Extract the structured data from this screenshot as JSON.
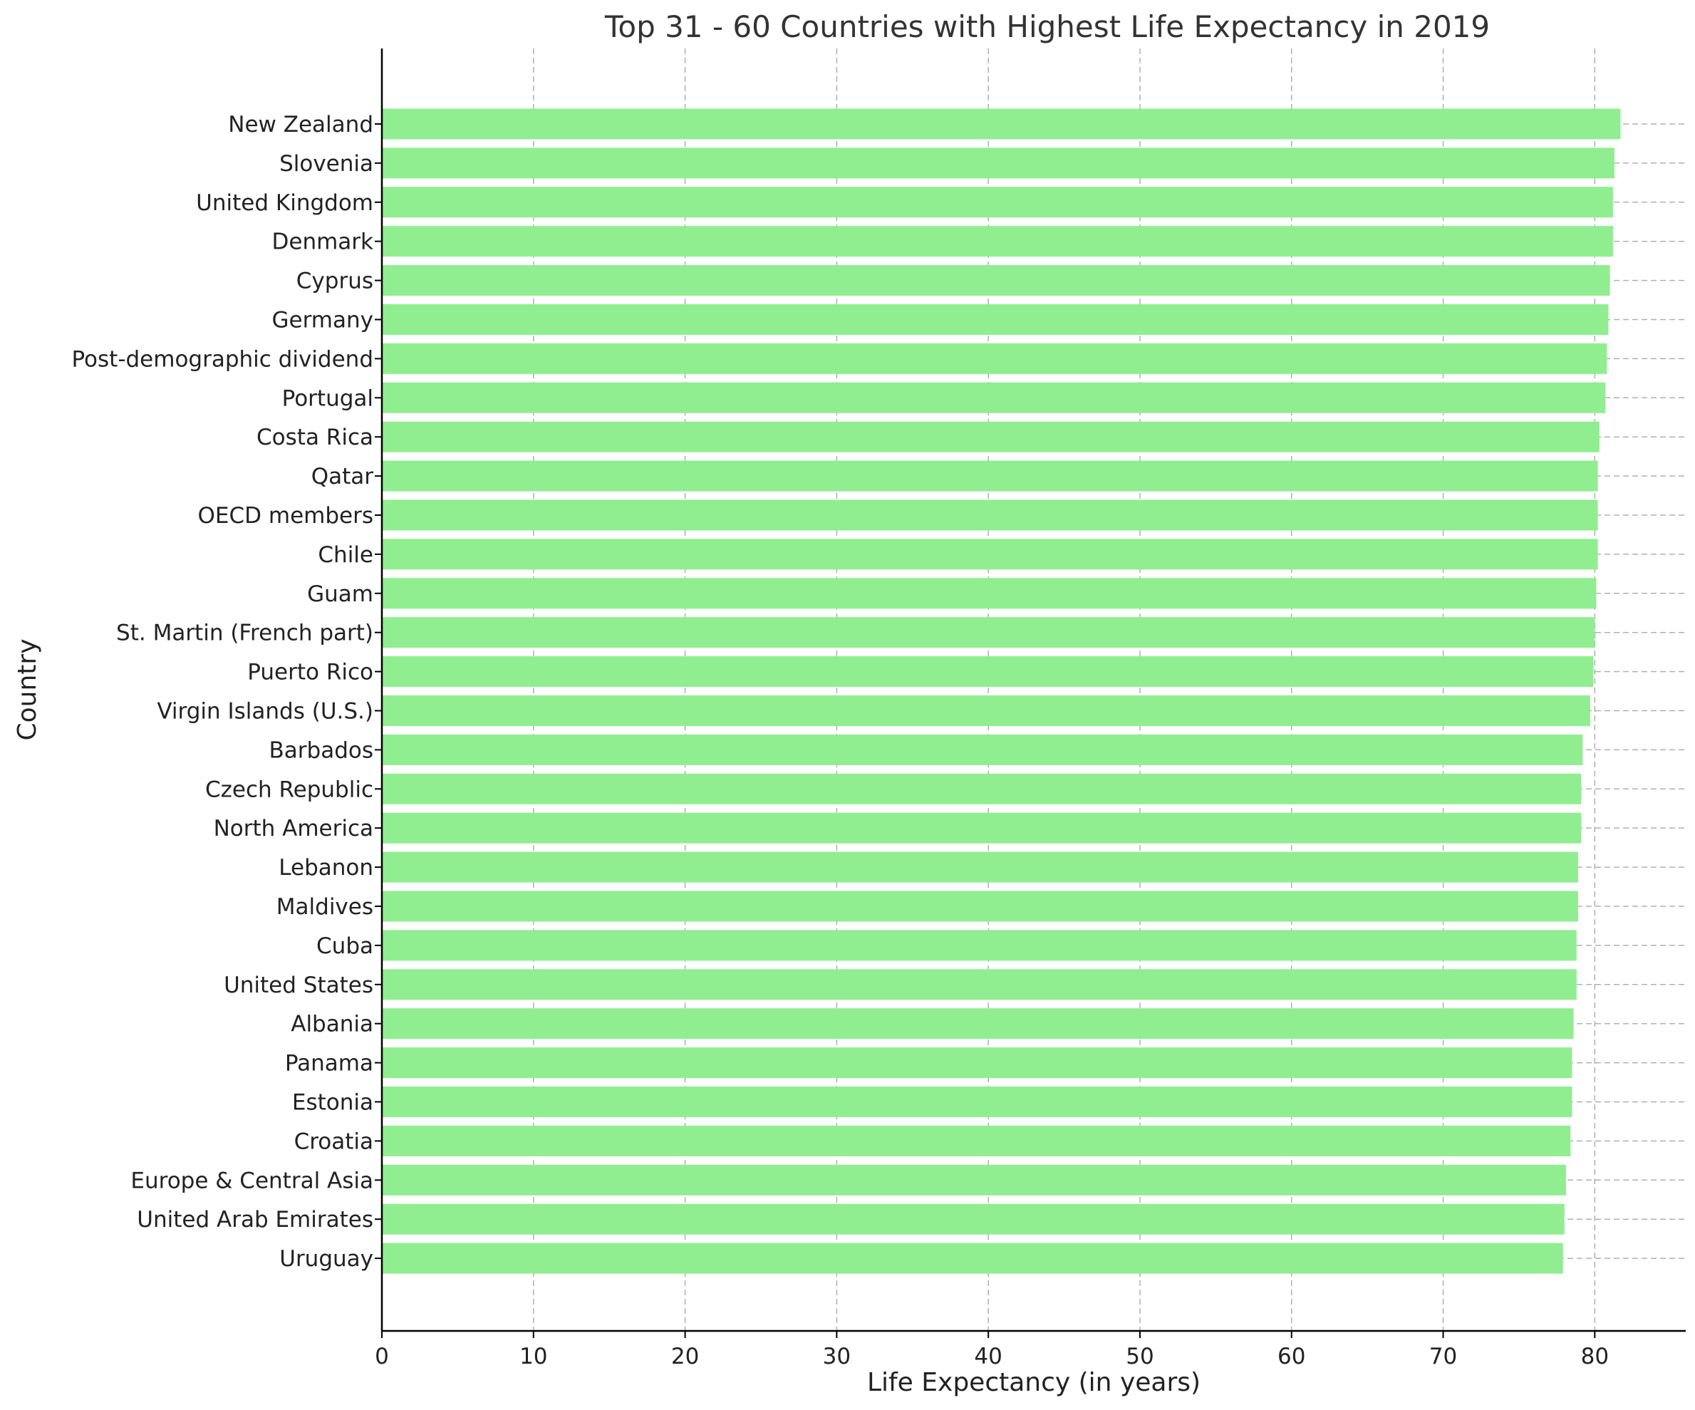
{
  "chart_data": {
    "type": "bar",
    "orientation": "horizontal",
    "title": "Top 31 - 60 Countries with Highest Life Expectancy in 2019",
    "xlabel": "Life Expectancy (in years)",
    "ylabel": "Country",
    "xlim": [
      0,
      86
    ],
    "x_ticks": [
      0,
      10,
      20,
      30,
      40,
      50,
      60,
      70,
      80
    ],
    "grid": true,
    "bar_color": "#90ee90",
    "categories": [
      "New Zealand",
      "Slovenia",
      "United Kingdom",
      "Denmark",
      "Cyprus",
      "Germany",
      "Post-demographic dividend",
      "Portugal",
      "Costa Rica",
      "Qatar",
      "OECD members",
      "Chile",
      "Guam",
      "St. Martin (French part)",
      "Puerto Rico",
      "Virgin Islands (U.S.)",
      "Barbados",
      "Czech Republic",
      "North America",
      "Lebanon",
      "Maldives",
      "Cuba",
      "United States",
      "Albania",
      "Panama",
      "Estonia",
      "Croatia",
      "Europe & Central Asia",
      "United Arab Emirates",
      "Uruguay"
    ],
    "values": [
      81.7,
      81.3,
      81.2,
      81.2,
      81.0,
      80.9,
      80.8,
      80.7,
      80.3,
      80.2,
      80.2,
      80.2,
      80.1,
      80.0,
      79.9,
      79.7,
      79.2,
      79.1,
      79.1,
      78.9,
      78.9,
      78.8,
      78.8,
      78.6,
      78.5,
      78.5,
      78.4,
      78.1,
      78.0,
      77.9
    ]
  }
}
